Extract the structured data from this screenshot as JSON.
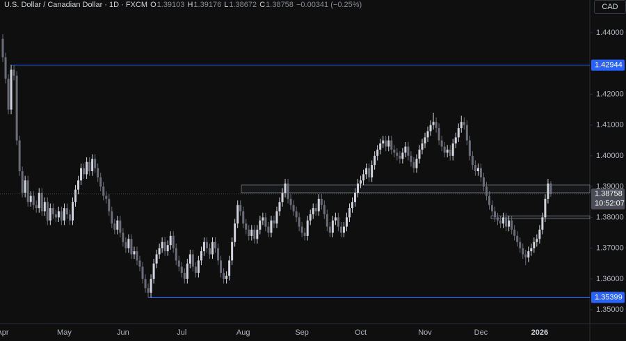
{
  "header": {
    "symbol": "U.S. Dollar / Canadian Dollar · 1D · FXCM",
    "fields": [
      "O",
      "H",
      "L",
      "C"
    ],
    "change": "−0.00341 (−0.25%)",
    "currency": "CAD",
    "countdown": "10:52:07"
  },
  "chart_data": {
    "type": "candlestick",
    "up_color": "#d1d4dc",
    "down_color": "#6a6d78",
    "grid": false,
    "ylim": [
      1.3455,
      1.4506
    ],
    "yticks": [
      {
        "value": 1.44,
        "label": "1.44000"
      },
      {
        "value": 1.42,
        "label": "1.42000"
      },
      {
        "value": 1.41,
        "label": "1.41000"
      },
      {
        "value": 1.4,
        "label": "1.40000"
      },
      {
        "value": 1.39,
        "label": "1.39000"
      },
      {
        "value": 1.38,
        "label": "1.38000"
      },
      {
        "value": 1.37,
        "label": "1.37000"
      },
      {
        "value": 1.36,
        "label": "1.36000"
      },
      {
        "value": 1.35,
        "label": "1.35000"
      }
    ],
    "levels": [
      {
        "value": 1.42944,
        "color": "#2962ff"
      },
      {
        "value": 1.35399,
        "color": "#2962ff"
      }
    ],
    "zones": [
      {
        "low": 1.388,
        "high": 1.3905
      },
      {
        "low": 1.3795,
        "high": 1.3805
      }
    ],
    "categories": [
      "Apr",
      null,
      null,
      null,
      null,
      null,
      null,
      null,
      null,
      null,
      null,
      null,
      null,
      null,
      null,
      null,
      null,
      null,
      null,
      null,
      null,
      null,
      "May",
      null,
      null,
      null,
      null,
      null,
      null,
      null,
      null,
      null,
      null,
      null,
      null,
      null,
      null,
      null,
      null,
      null,
      null,
      null,
      null,
      "Jun",
      null,
      null,
      null,
      null,
      null,
      null,
      null,
      null,
      null,
      null,
      null,
      null,
      null,
      null,
      null,
      null,
      null,
      null,
      null,
      null,
      "Jul",
      null,
      null,
      null,
      null,
      null,
      null,
      null,
      null,
      null,
      null,
      null,
      null,
      null,
      null,
      null,
      null,
      null,
      null,
      null,
      null,
      null,
      "Aug",
      null,
      null,
      null,
      null,
      null,
      null,
      null,
      null,
      null,
      null,
      null,
      null,
      null,
      null,
      null,
      null,
      null,
      null,
      null,
      null,
      "Sep",
      null,
      null,
      null,
      null,
      null,
      null,
      null,
      null,
      null,
      null,
      null,
      null,
      null,
      null,
      null,
      null,
      null,
      null,
      null,
      null,
      "Oct",
      null,
      null,
      null,
      null,
      null,
      null,
      null,
      null,
      null,
      null,
      null,
      null,
      null,
      null,
      null,
      null,
      null,
      null,
      null,
      null,
      null,
      null,
      "Nov",
      null,
      null,
      null,
      null,
      null,
      null,
      null,
      null,
      null,
      null,
      null,
      null,
      null,
      null,
      null,
      null,
      null,
      null,
      null,
      "Dec",
      null,
      null,
      null,
      null,
      null,
      null,
      null,
      null,
      null,
      null,
      null,
      null,
      null,
      null,
      null,
      null,
      null,
      null,
      null,
      null,
      "2026",
      null,
      null,
      null,
      null
    ],
    "open": [
      1.438,
      1.432,
      1.425,
      1.415,
      1.428,
      1.426,
      1.405,
      1.395,
      1.388,
      1.392,
      1.385,
      1.387,
      1.384,
      1.383,
      1.388,
      1.382,
      1.385,
      1.379,
      1.383,
      1.381,
      1.38,
      1.382,
      1.379,
      1.383,
      1.381,
      1.379,
      1.385,
      1.389,
      1.392,
      1.396,
      1.394,
      1.398,
      1.395,
      1.399,
      1.396,
      1.393,
      1.39,
      1.387,
      1.386,
      1.382,
      1.378,
      1.376,
      1.379,
      1.375,
      1.372,
      1.37,
      1.373,
      1.368,
      1.369,
      1.366,
      1.364,
      1.36,
      1.357,
      1.3555,
      1.36,
      1.365,
      1.368,
      1.37,
      1.372,
      1.369,
      1.371,
      1.374,
      1.37,
      1.366,
      1.364,
      1.362,
      1.36,
      1.365,
      1.368,
      1.364,
      1.362,
      1.366,
      1.369,
      1.372,
      1.37,
      1.368,
      1.372,
      1.37,
      1.366,
      1.362,
      1.36,
      1.361,
      1.366,
      1.372,
      1.378,
      1.384,
      1.382,
      1.378,
      1.376,
      1.374,
      1.376,
      1.373,
      1.376,
      1.379,
      1.38,
      1.377,
      1.375,
      1.379,
      1.378,
      1.382,
      1.385,
      1.388,
      1.391,
      1.386,
      1.384,
      1.382,
      1.38,
      1.377,
      1.375,
      1.374,
      1.379,
      1.381,
      1.383,
      1.382,
      1.386,
      1.384,
      1.381,
      1.377,
      1.375,
      1.379,
      1.38,
      1.377,
      1.375,
      1.377,
      1.38,
      1.383,
      1.385,
      1.388,
      1.391,
      1.392,
      1.394,
      1.396,
      1.393,
      1.397,
      1.4,
      1.402,
      1.404,
      1.405,
      1.403,
      1.405,
      1.402,
      1.401,
      1.4,
      1.399,
      1.401,
      1.403,
      1.4,
      1.398,
      1.396,
      1.399,
      1.402,
      1.404,
      1.406,
      1.408,
      1.41,
      1.411,
      1.409,
      1.405,
      1.403,
      1.401,
      1.402,
      1.4,
      1.404,
      1.406,
      1.409,
      1.411,
      1.41,
      1.405,
      1.4,
      1.397,
      1.395,
      1.396,
      1.393,
      1.39,
      1.387,
      1.384,
      1.382,
      1.38,
      1.379,
      1.378,
      1.38,
      1.377,
      1.379,
      1.376,
      1.374,
      1.372,
      1.37,
      1.368,
      1.367,
      1.369,
      1.37,
      1.372,
      1.373,
      1.376,
      1.38,
      1.386,
      1.39103
    ],
    "high": [
      1.4395,
      1.4335,
      1.4265,
      1.4295,
      1.4295,
      1.4275,
      1.4065,
      1.3965,
      1.3935,
      1.3935,
      1.3885,
      1.3885,
      1.3855,
      1.3895,
      1.3895,
      1.3865,
      1.3865,
      1.3845,
      1.3845,
      1.3825,
      1.3835,
      1.3835,
      1.3845,
      1.3845,
      1.3825,
      1.3865,
      1.3905,
      1.3935,
      1.3975,
      1.3975,
      1.3995,
      1.3995,
      1.4005,
      1.4005,
      1.3975,
      1.3945,
      1.3915,
      1.3885,
      1.3875,
      1.3835,
      1.3795,
      1.3805,
      1.3805,
      1.3765,
      1.3735,
      1.3745,
      1.3745,
      1.3705,
      1.3705,
      1.3675,
      1.3655,
      1.3615,
      1.3585,
      1.3615,
      1.3665,
      1.3695,
      1.3715,
      1.3735,
      1.3735,
      1.3725,
      1.3755,
      1.3755,
      1.3715,
      1.3675,
      1.3655,
      1.3635,
      1.3665,
      1.3695,
      1.3695,
      1.3655,
      1.3675,
      1.3705,
      1.3735,
      1.3735,
      1.3715,
      1.3735,
      1.3735,
      1.3715,
      1.3675,
      1.3635,
      1.3625,
      1.3675,
      1.3735,
      1.3795,
      1.3855,
      1.3855,
      1.3835,
      1.3795,
      1.3775,
      1.3775,
      1.3775,
      1.3775,
      1.3805,
      1.3815,
      1.3815,
      1.3785,
      1.3805,
      1.3805,
      1.3835,
      1.3865,
      1.3895,
      1.3925,
      1.3925,
      1.3875,
      1.3855,
      1.3835,
      1.3815,
      1.3785,
      1.3765,
      1.3805,
      1.3825,
      1.3845,
      1.3845,
      1.3875,
      1.3875,
      1.3855,
      1.3825,
      1.3785,
      1.3805,
      1.3815,
      1.3815,
      1.3785,
      1.3785,
      1.3815,
      1.3845,
      1.3865,
      1.3895,
      1.3925,
      1.3935,
      1.3955,
      1.3975,
      1.3975,
      1.3985,
      1.4015,
      1.4035,
      1.4055,
      1.4065,
      1.4065,
      1.4065,
      1.4065,
      1.4035,
      1.4025,
      1.4015,
      1.4025,
      1.4045,
      1.4045,
      1.4015,
      1.3995,
      1.4005,
      1.4035,
      1.4055,
      1.4075,
      1.4095,
      1.4115,
      1.414,
      1.4125,
      1.4105,
      1.4065,
      1.4045,
      1.4035,
      1.4035,
      1.4055,
      1.4075,
      1.4105,
      1.413,
      1.4125,
      1.4115,
      1.4065,
      1.4015,
      1.3985,
      1.3975,
      1.3975,
      1.3945,
      1.3915,
      1.3885,
      1.3855,
      1.3835,
      1.3815,
      1.3805,
      1.3815,
      1.3815,
      1.3805,
      1.3805,
      1.3775,
      1.3755,
      1.3735,
      1.3715,
      1.3695,
      1.3705,
      1.3715,
      1.3735,
      1.3745,
      1.3775,
      1.3815,
      1.3875,
      1.3925,
      1.39176
    ],
    "low": [
      1.4305,
      1.4235,
      1.4135,
      1.4135,
      1.4245,
      1.4035,
      1.3935,
      1.3865,
      1.3865,
      1.3835,
      1.3835,
      1.3825,
      1.3815,
      1.3815,
      1.3805,
      1.3805,
      1.3775,
      1.3775,
      1.3795,
      1.3785,
      1.3785,
      1.3775,
      1.3775,
      1.3795,
      1.3775,
      1.3775,
      1.3835,
      1.3875,
      1.3905,
      1.3925,
      1.3925,
      1.3935,
      1.3935,
      1.3945,
      1.3915,
      1.3885,
      1.3855,
      1.3845,
      1.3805,
      1.3765,
      1.3745,
      1.3745,
      1.3735,
      1.3705,
      1.3685,
      1.3685,
      1.3665,
      1.3665,
      1.3645,
      1.3625,
      1.3585,
      1.3555,
      1.354,
      1.354,
      1.3585,
      1.3635,
      1.3665,
      1.3685,
      1.3675,
      1.3675,
      1.3695,
      1.3685,
      1.3645,
      1.3625,
      1.3605,
      1.3585,
      1.3585,
      1.3635,
      1.3625,
      1.3605,
      1.3605,
      1.3645,
      1.3675,
      1.3685,
      1.3665,
      1.3665,
      1.3685,
      1.3645,
      1.3605,
      1.3585,
      1.3585,
      1.3595,
      1.3645,
      1.3705,
      1.3765,
      1.3805,
      1.3765,
      1.3745,
      1.3725,
      1.3725,
      1.3715,
      1.3715,
      1.3745,
      1.3775,
      1.3755,
      1.3735,
      1.3735,
      1.3765,
      1.3765,
      1.3805,
      1.3835,
      1.3865,
      1.3845,
      1.3825,
      1.3805,
      1.3785,
      1.3755,
      1.3735,
      1.3725,
      1.3725,
      1.3775,
      1.3795,
      1.3805,
      1.3805,
      1.3825,
      1.3795,
      1.3755,
      1.3735,
      1.3735,
      1.3775,
      1.3755,
      1.3735,
      1.3735,
      1.3755,
      1.3785,
      1.3815,
      1.3835,
      1.3865,
      1.3895,
      1.3905,
      1.3925,
      1.3915,
      1.3915,
      1.3955,
      1.3985,
      1.4005,
      1.4025,
      1.4015,
      1.4015,
      1.4005,
      1.3995,
      1.3985,
      1.3975,
      1.3975,
      1.3995,
      1.3985,
      1.3965,
      1.3945,
      1.3945,
      1.3975,
      1.4005,
      1.4025,
      1.4045,
      1.4065,
      1.4085,
      1.4075,
      1.4035,
      1.4015,
      1.3995,
      1.3995,
      1.3985,
      1.3985,
      1.4025,
      1.4045,
      1.4075,
      1.4085,
      1.4035,
      1.3985,
      1.3955,
      1.3935,
      1.3935,
      1.3915,
      1.3885,
      1.3855,
      1.3825,
      1.3805,
      1.3785,
      1.3775,
      1.3765,
      1.3765,
      1.3755,
      1.3755,
      1.3745,
      1.3725,
      1.3705,
      1.3685,
      1.3665,
      1.3645,
      1.3655,
      1.3675,
      1.3685,
      1.3705,
      1.3715,
      1.3745,
      1.3785,
      1.3845,
      1.38672
    ],
    "close": [
      1.432,
      1.425,
      1.415,
      1.428,
      1.426,
      1.405,
      1.395,
      1.388,
      1.392,
      1.385,
      1.387,
      1.384,
      1.383,
      1.388,
      1.382,
      1.385,
      1.379,
      1.383,
      1.381,
      1.38,
      1.382,
      1.379,
      1.383,
      1.381,
      1.379,
      1.385,
      1.389,
      1.392,
      1.396,
      1.394,
      1.398,
      1.395,
      1.399,
      1.396,
      1.393,
      1.39,
      1.387,
      1.386,
      1.382,
      1.378,
      1.376,
      1.379,
      1.375,
      1.372,
      1.37,
      1.373,
      1.368,
      1.369,
      1.366,
      1.364,
      1.36,
      1.357,
      1.3555,
      1.36,
      1.365,
      1.368,
      1.37,
      1.372,
      1.369,
      1.371,
      1.374,
      1.37,
      1.366,
      1.364,
      1.362,
      1.36,
      1.365,
      1.368,
      1.364,
      1.362,
      1.366,
      1.369,
      1.372,
      1.37,
      1.368,
      1.372,
      1.37,
      1.366,
      1.362,
      1.36,
      1.361,
      1.366,
      1.372,
      1.378,
      1.384,
      1.382,
      1.378,
      1.376,
      1.374,
      1.376,
      1.373,
      1.376,
      1.379,
      1.38,
      1.377,
      1.375,
      1.379,
      1.378,
      1.382,
      1.385,
      1.388,
      1.391,
      1.386,
      1.384,
      1.382,
      1.38,
      1.377,
      1.375,
      1.374,
      1.379,
      1.381,
      1.383,
      1.382,
      1.386,
      1.384,
      1.381,
      1.377,
      1.375,
      1.379,
      1.38,
      1.377,
      1.375,
      1.377,
      1.38,
      1.383,
      1.385,
      1.388,
      1.391,
      1.392,
      1.394,
      1.396,
      1.393,
      1.397,
      1.4,
      1.402,
      1.404,
      1.405,
      1.403,
      1.405,
      1.402,
      1.401,
      1.4,
      1.399,
      1.401,
      1.403,
      1.4,
      1.398,
      1.396,
      1.399,
      1.402,
      1.404,
      1.406,
      1.408,
      1.41,
      1.411,
      1.409,
      1.405,
      1.403,
      1.401,
      1.402,
      1.4,
      1.404,
      1.406,
      1.409,
      1.411,
      1.41,
      1.405,
      1.4,
      1.397,
      1.395,
      1.396,
      1.393,
      1.39,
      1.387,
      1.384,
      1.382,
      1.38,
      1.379,
      1.378,
      1.38,
      1.377,
      1.379,
      1.376,
      1.374,
      1.372,
      1.37,
      1.368,
      1.367,
      1.369,
      1.37,
      1.372,
      1.373,
      1.376,
      1.38,
      1.386,
      1.391,
      1.38758
    ]
  }
}
